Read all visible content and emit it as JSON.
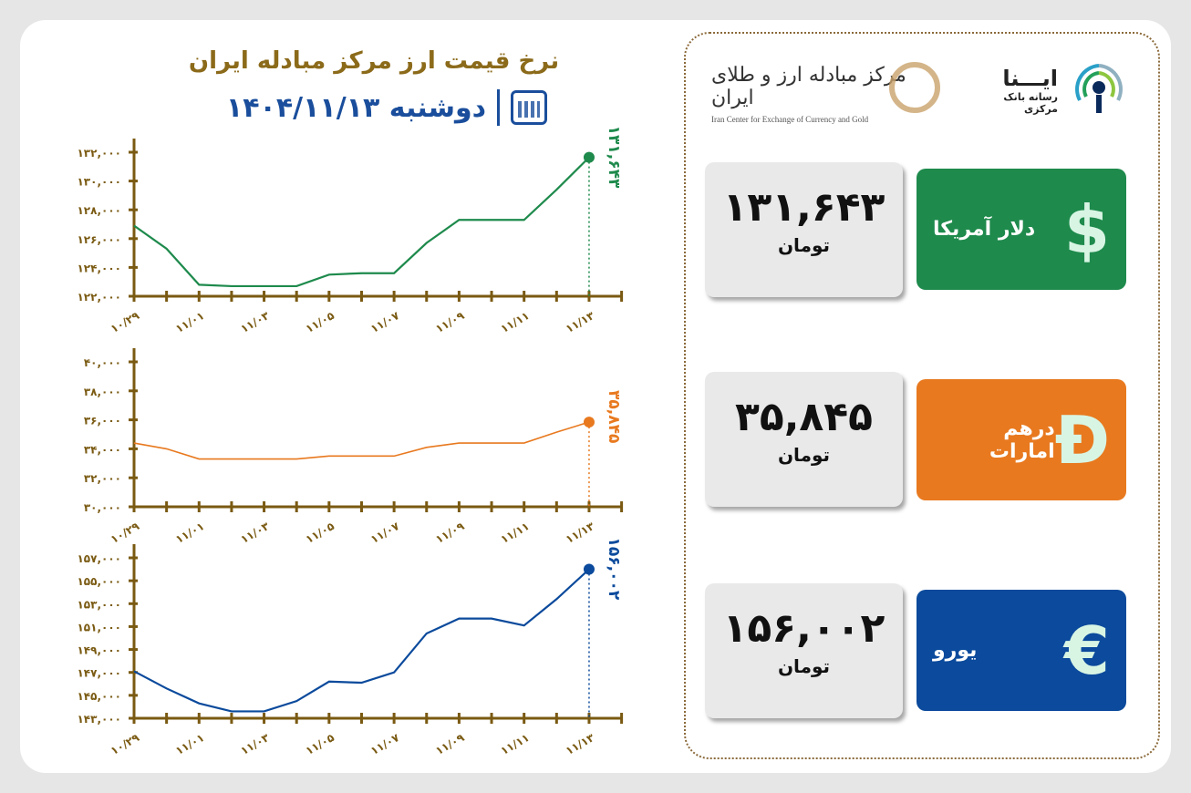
{
  "header": {
    "title": "نرخ قیمت ارز مرکز مبادله ایران",
    "date": "دوشنبه ۱۴۰۴/۱۱/۱۳",
    "icon": "calendar-icon"
  },
  "logos": {
    "center_fa": "مرکز مبادله ارز و طلای ایران",
    "center_en": "Iran Center for Exchange of Currency and Gold",
    "ina_name": "ایـــنا",
    "ina_sub": "رسانه بانک مرکزی"
  },
  "cards": [
    {
      "name": "دلار آمریکا",
      "value": "۱۳۱,۶۴۳",
      "unit": "تومان",
      "symbol": "$",
      "color": "#1e8a4c",
      "icon": "dollar-icon"
    },
    {
      "name": "درهم امارات",
      "value": "۳۵,۸۴۵",
      "unit": "تومان",
      "symbol": "Đ",
      "color": "#e8791f",
      "icon": "dirham-icon"
    },
    {
      "name": "یورو",
      "value": "۱۵۶,۰۰۲",
      "unit": "تومان",
      "symbol": "€",
      "color": "#0b4a9c",
      "icon": "euro-icon"
    }
  ],
  "chart_data": [
    {
      "type": "line",
      "x": [
        "10/29",
        "10/30",
        "11/01",
        "11/02",
        "11/03",
        "11/04",
        "11/05",
        "11/06",
        "11/07",
        "11/08",
        "11/09",
        "11/10",
        "11/11",
        "11/12",
        "11/13"
      ],
      "x_tick_labels": [
        "۱۰/۲۹",
        "۱۱/۰۱",
        "۱۱/۰۳",
        "۱۱/۰۵",
        "۱۱/۰۷",
        "۱۱/۰۹",
        "۱۱/۱۱",
        "۱۱/۱۳"
      ],
      "values": [
        126900,
        125300,
        122800,
        122700,
        122700,
        122700,
        123500,
        123600,
        123600,
        125700,
        127300,
        127300,
        127300,
        129400,
        131643
      ],
      "end_label": "۱۳۱,۶۴۳",
      "ylim": [
        122000,
        132000
      ],
      "y_tick_labels": [
        "۱۲۲,۰۰۰",
        "۱۲۴,۰۰۰",
        "۱۲۶,۰۰۰",
        "۱۲۸,۰۰۰",
        "۱۳۰,۰۰۰",
        "۱۳۲,۰۰۰"
      ],
      "yticks": [
        122000,
        124000,
        126000,
        128000,
        130000,
        132000
      ],
      "color": "#1e8a4c",
      "grid": false
    },
    {
      "type": "line",
      "x": [
        "10/29",
        "10/30",
        "11/01",
        "11/02",
        "11/03",
        "11/04",
        "11/05",
        "11/06",
        "11/07",
        "11/08",
        "11/09",
        "11/10",
        "11/11",
        "11/12",
        "11/13"
      ],
      "x_tick_labels": [
        "۱۰/۲۹",
        "۱۱/۰۱",
        "۱۱/۰۳",
        "۱۱/۰۵",
        "۱۱/۰۷",
        "۱۱/۰۹",
        "۱۱/۱۱",
        "۱۱/۱۳"
      ],
      "values": [
        34400,
        34000,
        33300,
        33300,
        33300,
        33300,
        33500,
        33500,
        33500,
        34100,
        34400,
        34400,
        34400,
        35150,
        35845
      ],
      "end_label": "۳۵,۸۴۵",
      "ylim": [
        30000,
        40000
      ],
      "y_tick_labels": [
        "۳۰,۰۰۰",
        "۳۲,۰۰۰",
        "۳۴,۰۰۰",
        "۳۶,۰۰۰",
        "۳۸,۰۰۰",
        "۴۰,۰۰۰"
      ],
      "yticks": [
        30000,
        32000,
        34000,
        36000,
        38000,
        40000
      ],
      "color": "#e8791f",
      "grid": false
    },
    {
      "type": "line",
      "x": [
        "10/29",
        "10/30",
        "11/01",
        "11/02",
        "11/03",
        "11/04",
        "11/05",
        "11/06",
        "11/07",
        "11/08",
        "11/09",
        "11/10",
        "11/11",
        "11/12",
        "11/13"
      ],
      "x_tick_labels": [
        "۱۰/۲۹",
        "۱۱/۰۱",
        "۱۱/۰۳",
        "۱۱/۰۵",
        "۱۱/۰۷",
        "۱۱/۰۹",
        "۱۱/۱۱",
        "۱۱/۱۳"
      ],
      "values": [
        147100,
        145600,
        144300,
        143600,
        143600,
        144500,
        146200,
        146100,
        147000,
        150400,
        151700,
        151700,
        151100,
        153400,
        156002
      ],
      "end_label": "۱۵۶,۰۰۲",
      "ylim": [
        143000,
        157000
      ],
      "y_tick_labels": [
        "۱۴۳,۰۰۰",
        "۱۴۵,۰۰۰",
        "۱۴۷,۰۰۰",
        "۱۴۹,۰۰۰",
        "۱۵۱,۰۰۰",
        "۱۵۳,۰۰۰",
        "۱۵۵,۰۰۰",
        "۱۵۷,۰۰۰"
      ],
      "yticks": [
        143000,
        145000,
        147000,
        149000,
        151000,
        153000,
        155000,
        157000
      ],
      "color": "#0b4a9c",
      "grid": false
    }
  ]
}
